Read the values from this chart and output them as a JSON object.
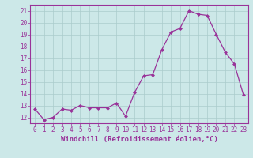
{
  "x": [
    0,
    1,
    2,
    3,
    4,
    5,
    6,
    7,
    8,
    9,
    10,
    11,
    12,
    13,
    14,
    15,
    16,
    17,
    18,
    19,
    20,
    21,
    22,
    23
  ],
  "y": [
    12.7,
    11.8,
    12.0,
    12.7,
    12.6,
    13.0,
    12.8,
    12.8,
    12.8,
    13.2,
    12.1,
    14.1,
    15.5,
    15.6,
    17.7,
    19.2,
    19.5,
    21.0,
    20.7,
    20.6,
    19.0,
    17.5,
    16.5,
    13.9
  ],
  "line_color": "#993399",
  "marker": "D",
  "marker_size": 2,
  "bg_color": "#cce8e8",
  "grid_color": "#aacccc",
  "border_color": "#993399",
  "xlabel": "Windchill (Refroidissement éolien,°C)",
  "ylim": [
    11.5,
    21.5
  ],
  "xlim": [
    -0.5,
    23.5
  ],
  "yticks": [
    12,
    13,
    14,
    15,
    16,
    17,
    18,
    19,
    20,
    21
  ],
  "xticks": [
    0,
    1,
    2,
    3,
    4,
    5,
    6,
    7,
    8,
    9,
    10,
    11,
    12,
    13,
    14,
    15,
    16,
    17,
    18,
    19,
    20,
    21,
    22,
    23
  ],
  "tick_color": "#993399",
  "label_fontsize": 5.5,
  "xlabel_fontsize": 6.5
}
